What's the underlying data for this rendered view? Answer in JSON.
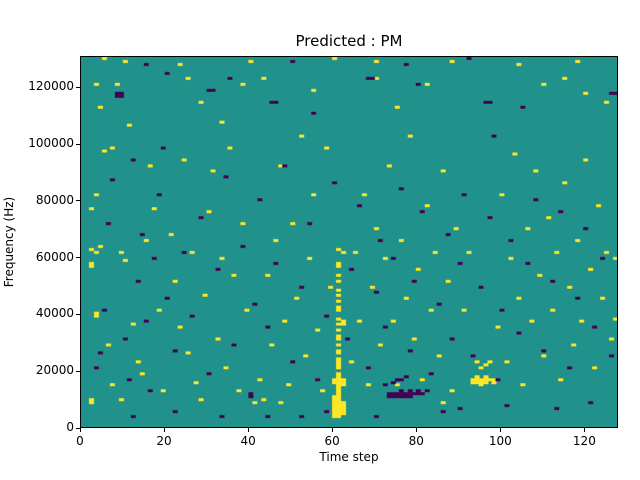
{
  "chart_data": {
    "type": "heatmap",
    "title": "Predicted : PM",
    "xlabel": "Time step",
    "ylabel": "Frequency (Hz)",
    "x_range": [
      0,
      128
    ],
    "y_range": [
      0,
      131072
    ],
    "x_ticks": [
      0,
      20,
      40,
      60,
      80,
      100,
      120
    ],
    "y_ticks": [
      0,
      20000,
      40000,
      60000,
      80000,
      100000,
      120000
    ],
    "grid_size": [
      128,
      128
    ],
    "legend": "none",
    "grid": false,
    "colors": {
      "mid": "#21918c",
      "high": "#fde725",
      "low": "#440154"
    },
    "cells_high": [
      [
        60,
        3
      ],
      [
        60,
        4
      ],
      [
        60,
        5
      ],
      [
        60,
        6
      ],
      [
        60,
        7
      ],
      [
        60,
        8
      ],
      [
        60,
        9
      ],
      [
        60,
        10
      ],
      [
        60,
        15
      ],
      [
        60,
        16
      ],
      [
        61,
        3
      ],
      [
        61,
        4
      ],
      [
        61,
        5
      ],
      [
        61,
        6
      ],
      [
        61,
        7
      ],
      [
        61,
        8
      ],
      [
        61,
        9
      ],
      [
        61,
        10
      ],
      [
        61,
        11
      ],
      [
        61,
        12
      ],
      [
        61,
        13
      ],
      [
        61,
        14
      ],
      [
        61,
        15
      ],
      [
        61,
        16
      ],
      [
        61,
        17
      ],
      [
        61,
        18
      ],
      [
        61,
        20
      ],
      [
        61,
        21
      ],
      [
        61,
        22
      ],
      [
        61,
        23
      ],
      [
        61,
        25
      ],
      [
        61,
        26
      ],
      [
        61,
        28
      ],
      [
        61,
        30
      ],
      [
        61,
        31
      ],
      [
        61,
        33
      ],
      [
        61,
        35
      ],
      [
        61,
        37
      ],
      [
        61,
        40
      ],
      [
        61,
        41
      ],
      [
        61,
        43
      ],
      [
        61,
        45
      ],
      [
        61,
        47
      ],
      [
        61,
        50
      ],
      [
        61,
        52
      ],
      [
        61,
        55
      ],
      [
        61,
        56
      ],
      [
        61,
        61
      ],
      [
        62,
        4
      ],
      [
        62,
        5
      ],
      [
        62,
        6
      ],
      [
        62,
        7
      ],
      [
        62,
        8
      ],
      [
        62,
        14
      ],
      [
        62,
        15
      ],
      [
        62,
        16
      ],
      [
        62,
        35
      ],
      [
        62,
        36
      ],
      [
        62,
        60
      ],
      [
        93,
        15
      ],
      [
        93,
        16
      ],
      [
        94,
        15
      ],
      [
        94,
        16
      ],
      [
        94,
        17
      ],
      [
        95,
        14
      ],
      [
        95,
        15
      ],
      [
        95,
        16
      ],
      [
        96,
        15
      ],
      [
        96,
        16
      ],
      [
        96,
        17
      ],
      [
        97,
        16
      ],
      [
        97,
        22
      ],
      [
        95,
        20
      ],
      [
        96,
        21
      ],
      [
        94,
        22
      ],
      [
        98,
        15
      ],
      [
        98,
        16
      ],
      [
        2,
        8
      ],
      [
        2,
        9
      ],
      [
        3,
        38
      ],
      [
        3,
        39
      ],
      [
        2,
        55
      ],
      [
        2,
        56
      ],
      [
        3,
        60
      ],
      [
        2,
        61
      ],
      [
        4,
        62
      ],
      [
        2,
        75
      ],
      [
        3,
        80
      ],
      [
        5,
        95
      ],
      [
        4,
        110
      ],
      [
        3,
        118
      ],
      [
        8,
        118
      ],
      [
        7,
        96
      ],
      [
        9,
        60
      ],
      [
        10,
        57
      ],
      [
        12,
        35
      ],
      [
        13,
        22
      ],
      [
        14,
        18
      ],
      [
        15,
        64
      ],
      [
        16,
        90
      ],
      [
        17,
        75
      ],
      [
        18,
        40
      ],
      [
        19,
        12
      ],
      [
        11,
        104
      ],
      [
        6,
        28
      ],
      [
        7,
        14
      ],
      [
        9,
        9
      ],
      [
        21,
        66
      ],
      [
        22,
        50
      ],
      [
        23,
        34
      ],
      [
        24,
        92
      ],
      [
        25,
        25
      ],
      [
        26,
        60
      ],
      [
        27,
        15
      ],
      [
        28,
        112
      ],
      [
        29,
        45
      ],
      [
        30,
        74
      ],
      [
        31,
        88
      ],
      [
        32,
        30
      ],
      [
        33,
        58
      ],
      [
        34,
        20
      ],
      [
        35,
        96
      ],
      [
        36,
        52
      ],
      [
        37,
        12
      ],
      [
        38,
        70
      ],
      [
        39,
        40
      ],
      [
        25,
        120
      ],
      [
        28,
        9
      ],
      [
        33,
        105
      ],
      [
        38,
        118
      ],
      [
        41,
        8
      ],
      [
        42,
        16
      ],
      [
        43,
        9
      ],
      [
        44,
        52
      ],
      [
        45,
        28
      ],
      [
        46,
        64
      ],
      [
        47,
        90
      ],
      [
        48,
        36
      ],
      [
        49,
        14
      ],
      [
        50,
        70
      ],
      [
        51,
        44
      ],
      [
        52,
        100
      ],
      [
        53,
        24
      ],
      [
        54,
        58
      ],
      [
        55,
        80
      ],
      [
        56,
        33
      ],
      [
        57,
        12
      ],
      [
        58,
        96
      ],
      [
        59,
        48
      ],
      [
        43,
        120
      ],
      [
        47,
        8
      ],
      [
        55,
        116
      ],
      [
        64,
        22
      ],
      [
        65,
        60
      ],
      [
        66,
        36
      ],
      [
        67,
        80
      ],
      [
        68,
        14
      ],
      [
        69,
        48
      ],
      [
        70,
        68
      ],
      [
        71,
        28
      ],
      [
        72,
        58
      ],
      [
        73,
        90
      ],
      [
        74,
        36
      ],
      [
        75,
        14
      ],
      [
        76,
        64
      ],
      [
        77,
        44
      ],
      [
        78,
        100
      ],
      [
        79,
        30
      ],
      [
        80,
        54
      ],
      [
        81,
        16
      ],
      [
        82,
        76
      ],
      [
        83,
        40
      ],
      [
        84,
        60
      ],
      [
        85,
        24
      ],
      [
        86,
        88
      ],
      [
        87,
        50
      ],
      [
        88,
        12
      ],
      [
        89,
        68
      ],
      [
        70,
        120
      ],
      [
        75,
        110
      ],
      [
        82,
        118
      ],
      [
        86,
        8
      ],
      [
        91,
        40
      ],
      [
        92,
        60
      ],
      [
        99,
        34
      ],
      [
        100,
        80
      ],
      [
        101,
        22
      ],
      [
        102,
        58
      ],
      [
        103,
        94
      ],
      [
        104,
        44
      ],
      [
        105,
        14
      ],
      [
        106,
        68
      ],
      [
        107,
        36
      ],
      [
        108,
        88
      ],
      [
        109,
        52
      ],
      [
        110,
        24
      ],
      [
        111,
        72
      ],
      [
        112,
        40
      ],
      [
        113,
        60
      ],
      [
        114,
        16
      ],
      [
        115,
        84
      ],
      [
        116,
        48
      ],
      [
        117,
        28
      ],
      [
        118,
        64
      ],
      [
        119,
        36
      ],
      [
        120,
        92
      ],
      [
        121,
        54
      ],
      [
        122,
        20
      ],
      [
        123,
        76
      ],
      [
        124,
        44
      ],
      [
        125,
        60
      ],
      [
        126,
        30
      ],
      [
        110,
        118
      ],
      [
        115,
        120
      ],
      [
        120,
        115
      ],
      [
        125,
        112
      ],
      [
        127,
        37
      ],
      [
        127,
        58
      ],
      [
        10,
        126
      ],
      [
        23,
        125
      ],
      [
        40,
        126
      ],
      [
        60,
        127
      ],
      [
        88,
        126
      ],
      [
        104,
        125
      ],
      [
        5,
        127
      ],
      [
        70,
        126
      ],
      [
        118,
        126
      ]
    ],
    "cells_low": [
      [
        73,
        10
      ],
      [
        73,
        11
      ],
      [
        74,
        10
      ],
      [
        74,
        11
      ],
      [
        75,
        10
      ],
      [
        75,
        11
      ],
      [
        76,
        10
      ],
      [
        76,
        11
      ],
      [
        76,
        12
      ],
      [
        77,
        10
      ],
      [
        77,
        11
      ],
      [
        78,
        10
      ],
      [
        78,
        11
      ],
      [
        78,
        12
      ],
      [
        79,
        11
      ],
      [
        80,
        11
      ],
      [
        80,
        12
      ],
      [
        81,
        11
      ],
      [
        82,
        12
      ],
      [
        75,
        16
      ],
      [
        76,
        16
      ],
      [
        77,
        17
      ],
      [
        72,
        14
      ],
      [
        74,
        15
      ],
      [
        8,
        114
      ],
      [
        9,
        114
      ],
      [
        8,
        115
      ],
      [
        9,
        115
      ],
      [
        30,
        116
      ],
      [
        31,
        116
      ],
      [
        45,
        112
      ],
      [
        46,
        112
      ],
      [
        55,
        108
      ],
      [
        68,
        120
      ],
      [
        69,
        120
      ],
      [
        80,
        118
      ],
      [
        96,
        112
      ],
      [
        97,
        112
      ],
      [
        98,
        100
      ],
      [
        105,
        110
      ],
      [
        126,
        115
      ],
      [
        127,
        115
      ],
      [
        20,
        122
      ],
      [
        35,
        120
      ],
      [
        50,
        126
      ],
      [
        77,
        125
      ],
      [
        92,
        127
      ],
      [
        15,
        125
      ],
      [
        3,
        20
      ],
      [
        4,
        25
      ],
      [
        5,
        40
      ],
      [
        6,
        70
      ],
      [
        7,
        85
      ],
      [
        10,
        30
      ],
      [
        11,
        16
      ],
      [
        12,
        92
      ],
      [
        13,
        50
      ],
      [
        14,
        66
      ],
      [
        15,
        36
      ],
      [
        16,
        12
      ],
      [
        17,
        58
      ],
      [
        18,
        80
      ],
      [
        19,
        96
      ],
      [
        20,
        44
      ],
      [
        22,
        26
      ],
      [
        24,
        60
      ],
      [
        26,
        38
      ],
      [
        28,
        72
      ],
      [
        30,
        18
      ],
      [
        32,
        54
      ],
      [
        34,
        86
      ],
      [
        36,
        28
      ],
      [
        38,
        62
      ],
      [
        40,
        10
      ],
      [
        40,
        11
      ],
      [
        41,
        42
      ],
      [
        42,
        78
      ],
      [
        44,
        34
      ],
      [
        46,
        56
      ],
      [
        48,
        90
      ],
      [
        50,
        22
      ],
      [
        52,
        48
      ],
      [
        54,
        70
      ],
      [
        56,
        16
      ],
      [
        58,
        38
      ],
      [
        60,
        84
      ],
      [
        63,
        30
      ],
      [
        64,
        54
      ],
      [
        66,
        76
      ],
      [
        68,
        20
      ],
      [
        70,
        46
      ],
      [
        71,
        64
      ],
      [
        72,
        34
      ],
      [
        74,
        58
      ],
      [
        76,
        82
      ],
      [
        78,
        26
      ],
      [
        79,
        50
      ],
      [
        81,
        74
      ],
      [
        83,
        18
      ],
      [
        85,
        42
      ],
      [
        87,
        66
      ],
      [
        88,
        30
      ],
      [
        90,
        56
      ],
      [
        91,
        80
      ],
      [
        93,
        24
      ],
      [
        95,
        48
      ],
      [
        97,
        72
      ],
      [
        99,
        16
      ],
      [
        100,
        40
      ],
      [
        102,
        64
      ],
      [
        104,
        32
      ],
      [
        106,
        56
      ],
      [
        108,
        78
      ],
      [
        110,
        26
      ],
      [
        112,
        50
      ],
      [
        114,
        74
      ],
      [
        116,
        20
      ],
      [
        118,
        44
      ],
      [
        120,
        68
      ],
      [
        122,
        34
      ],
      [
        124,
        58
      ],
      [
        126,
        24
      ],
      [
        44,
        3
      ],
      [
        52,
        3
      ],
      [
        90,
        6
      ],
      [
        33,
        3
      ],
      [
        22,
        5
      ],
      [
        58,
        5
      ],
      [
        12,
        3
      ],
      [
        70,
        3
      ],
      [
        86,
        5
      ],
      [
        101,
        7
      ],
      [
        113,
        6
      ],
      [
        121,
        8
      ]
    ]
  }
}
